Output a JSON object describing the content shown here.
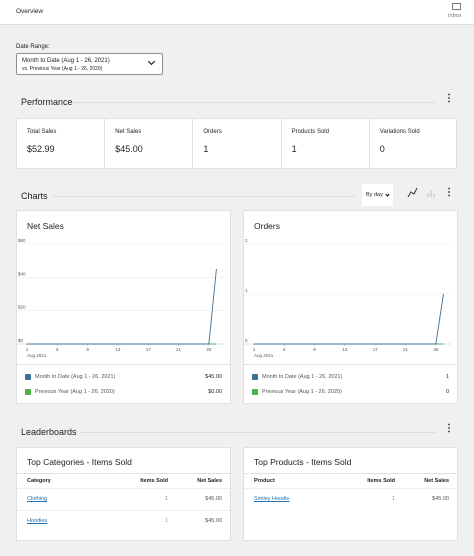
{
  "header": {
    "title": "Overview",
    "inbox": "Inbox"
  },
  "date_range": {
    "label": "Date Range:",
    "primary": "Month to Date (Aug 1 - 26, 2021)",
    "secondary": "vs. Previous Year (Aug 1 - 26, 2020)"
  },
  "performance": {
    "title": "Performance",
    "tiles": [
      {
        "label": "Total Sales",
        "value": "$52.99"
      },
      {
        "label": "Net Sales",
        "value": "$45.00"
      },
      {
        "label": "Orders",
        "value": "1"
      },
      {
        "label": "Products Sold",
        "value": "1"
      },
      {
        "label": "Variations Sold",
        "value": "0"
      }
    ]
  },
  "charts_section": {
    "title": "Charts",
    "interval": "By day"
  },
  "chart_data": [
    {
      "type": "line",
      "title": "Net Sales",
      "x": [
        1,
        2,
        3,
        4,
        5,
        6,
        7,
        8,
        9,
        10,
        11,
        12,
        13,
        14,
        15,
        16,
        17,
        18,
        19,
        20,
        21,
        22,
        23,
        24,
        25,
        26
      ],
      "xlim": [
        1,
        27
      ],
      "xticks": [
        1,
        5,
        9,
        13,
        17,
        21,
        25
      ],
      "x_sublabel": "Aug 2021",
      "ylim": [
        0,
        60
      ],
      "yticks": [
        {
          "value": 0,
          "label": "$0"
        },
        {
          "value": 20,
          "label": "$20"
        },
        {
          "value": 40,
          "label": "$40"
        },
        {
          "value": 60,
          "label": "$60"
        }
      ],
      "grid": true,
      "series": [
        {
          "name": "Month to Date (Aug 1 - 26, 2021)",
          "color": "#3f6f91",
          "values": [
            0,
            0,
            0,
            0,
            0,
            0,
            0,
            0,
            0,
            0,
            0,
            0,
            0,
            0,
            0,
            0,
            0,
            0,
            0,
            0,
            0,
            0,
            0,
            0,
            0,
            45
          ],
          "total": "$45.00"
        },
        {
          "name": "Previous Year (Aug 1 - 26, 2020)",
          "color": "#4caf50",
          "values": [
            0,
            0,
            0,
            0,
            0,
            0,
            0,
            0,
            0,
            0,
            0,
            0,
            0,
            0,
            0,
            0,
            0,
            0,
            0,
            0,
            0,
            0,
            0,
            0,
            0,
            0
          ],
          "total": "$0.00"
        }
      ]
    },
    {
      "type": "line",
      "title": "Orders",
      "x": [
        1,
        2,
        3,
        4,
        5,
        6,
        7,
        8,
        9,
        10,
        11,
        12,
        13,
        14,
        15,
        16,
        17,
        18,
        19,
        20,
        21,
        22,
        23,
        24,
        25,
        26
      ],
      "xlim": [
        1,
        27
      ],
      "xticks": [
        1,
        5,
        9,
        13,
        17,
        21,
        25
      ],
      "x_sublabel": "Aug 2021",
      "ylim": [
        0,
        2
      ],
      "yticks": [
        0,
        1,
        2
      ],
      "grid": true,
      "series": [
        {
          "name": "Month to Date (Aug 1 - 26, 2021)",
          "color": "#3f6f91",
          "values": [
            0,
            0,
            0,
            0,
            0,
            0,
            0,
            0,
            0,
            0,
            0,
            0,
            0,
            0,
            0,
            0,
            0,
            0,
            0,
            0,
            0,
            0,
            0,
            0,
            0,
            1
          ],
          "total": "1"
        },
        {
          "name": "Previous Year (Aug 1 - 26, 2020)",
          "color": "#4caf50",
          "values": [
            0,
            0,
            0,
            0,
            0,
            0,
            0,
            0,
            0,
            0,
            0,
            0,
            0,
            0,
            0,
            0,
            0,
            0,
            0,
            0,
            0,
            0,
            0,
            0,
            0,
            0
          ],
          "total": "0"
        }
      ]
    }
  ],
  "leaderboards": {
    "title": "Leaderboards",
    "tables": [
      {
        "title": "Top Categories - Items Sold",
        "headers": [
          "Category",
          "Items Sold",
          "Net Sales"
        ],
        "rows": [
          [
            "Clothing",
            "1",
            "$45.00"
          ],
          [
            "Hoodies",
            "1",
            "$45.00"
          ]
        ]
      },
      {
        "title": "Top Products - Items Sold",
        "headers": [
          "Product",
          "Items Sold",
          "Net Sales"
        ],
        "rows": [
          [
            "Smiley Hoodie",
            "1",
            "$45.00"
          ]
        ]
      }
    ]
  }
}
